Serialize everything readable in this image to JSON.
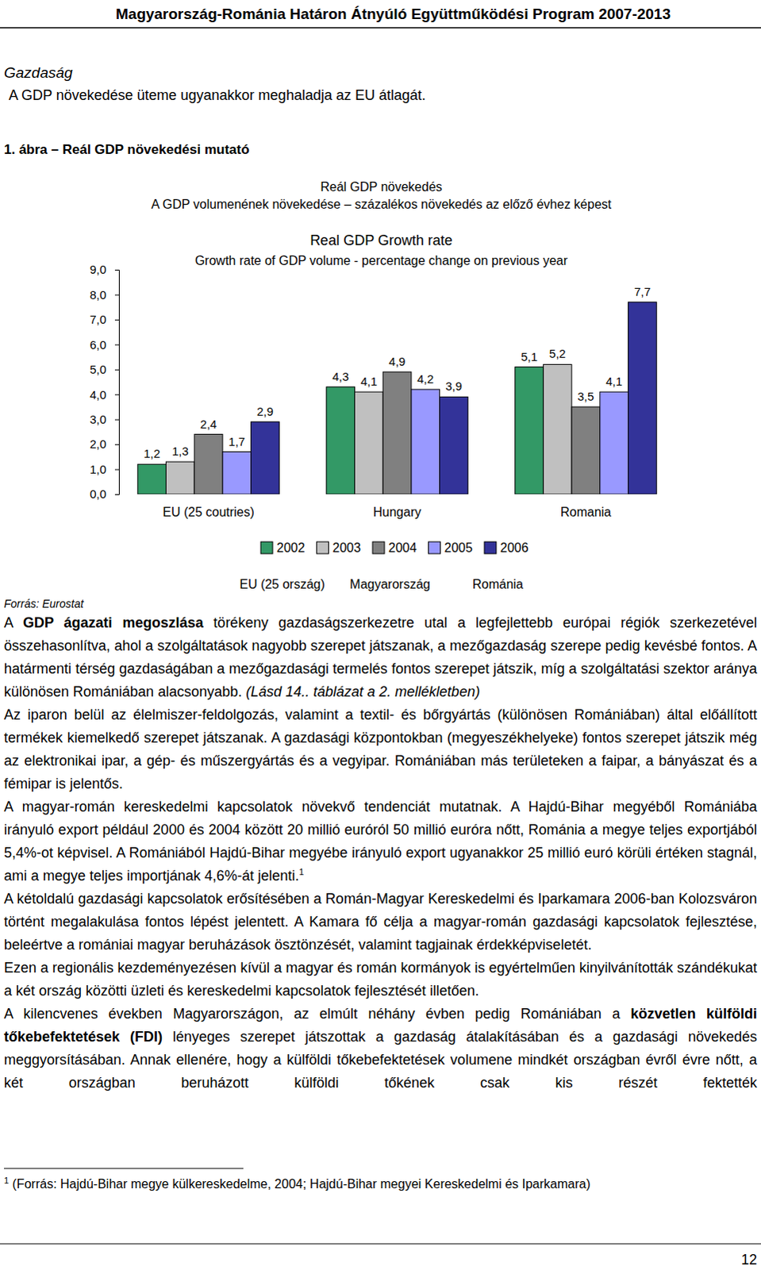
{
  "header": {
    "title": "Magyarország-Románia Határon Átnyúló Együttműködési Program 2007-2013"
  },
  "section": {
    "title": "Gazdaság",
    "lead": "A GDP növekedése üteme ugyanakkor meghaladja az EU átlagát."
  },
  "figure": {
    "caption": "1. ábra – Reál GDP növekedési mutató",
    "title": "Reál GDP növekedés",
    "subtitle": "A GDP volumenének növekedése – százalékos növekedés az előző évhez képest",
    "source": "Forrás: Eurostat"
  },
  "chart_data": {
    "type": "bar",
    "title": "Real GDP Growth rate",
    "subtitle": "Growth rate of GDP volume - percentage change on previous year",
    "categories": [
      "EU (25 coutries)",
      "Hungary",
      "Romania"
    ],
    "annotations": [
      "EU (25 ország)",
      "Magyarország",
      "Románia"
    ],
    "series": [
      {
        "name": "2002",
        "color": "#339966",
        "values": [
          1.2,
          4.3,
          5.1
        ],
        "value_labels": [
          "1,2",
          "4,3",
          "5,1"
        ]
      },
      {
        "name": "2003",
        "color": "#c0c0c0",
        "values": [
          1.3,
          4.1,
          5.2
        ],
        "value_labels": [
          "1,3",
          "4,1",
          "5,2"
        ]
      },
      {
        "name": "2004",
        "color": "#808080",
        "values": [
          2.4,
          4.9,
          3.5
        ],
        "value_labels": [
          "2,4",
          "4,9",
          "3,5"
        ]
      },
      {
        "name": "2005",
        "color": "#9999ff",
        "values": [
          1.7,
          4.2,
          4.1
        ],
        "value_labels": [
          "1,7",
          "4,2",
          "4,1"
        ]
      },
      {
        "name": "2006",
        "color": "#333399",
        "values": [
          2.9,
          3.9,
          7.7
        ],
        "value_labels": [
          "2,9",
          "3,9",
          "7,7"
        ]
      }
    ],
    "ylim": [
      0,
      9
    ],
    "yticks": [
      {
        "value": 0,
        "label": "0,0"
      },
      {
        "value": 1,
        "label": "1,0"
      },
      {
        "value": 2,
        "label": "2,0"
      },
      {
        "value": 3,
        "label": "3,0"
      },
      {
        "value": 4,
        "label": "4,0"
      },
      {
        "value": 5,
        "label": "5,0"
      },
      {
        "value": 6,
        "label": "6,0"
      },
      {
        "value": 7,
        "label": "7,0"
      },
      {
        "value": 8,
        "label": "8,0"
      },
      {
        "value": 9,
        "label": "9,0"
      }
    ],
    "grid": false,
    "legend": "bottom",
    "data_labels": true
  },
  "body": [
    [
      {
        "text": "A "
      },
      {
        "text": "GDP ágazati megoszlása",
        "bold": true
      },
      {
        "text": " törékeny gazdaságszerkezetre utal a legfejlettebb európai régiók szerkezetével összehasonlítva, ahol a szolgáltatások nagyobb szerepet játszanak, a mezőgazdaság szerepe pedig kevésbé fontos. A határmenti térség gazdaságában a mezőgazdasági termelés fontos szerepet játszik, míg a szolgáltatási szektor aránya különösen Romániában alacsonyabb. "
      },
      {
        "text": "(Lásd 14.. táblázat a 2. mellékletben)",
        "italic": true
      }
    ],
    [
      {
        "text": "Az iparon belül az élelmiszer-feldolgozás, valamint a textil- és bőrgyártás (különösen Romániában) által előállított termékek kiemelkedő szerepet játszanak. A gazdasági központokban (megyeszékhelyeke) fontos szerepet játszik még az elektronikai ipar, a gép- és műszergyártás és a vegyipar. Romániában más területeken a faipar, a bányászat és a fémipar is jelentős."
      }
    ],
    [
      {
        "text": "A magyar-román kereskedelmi kapcsolatok növekvő tendenciát mutatnak. A Hajdú-Bihar megyéből Romániába irányuló export például 2000 és 2004 között 20 millió euróról 50 millió euróra nőtt, Románia a megye teljes exportjából 5,4%-ot képvisel. A Romániából Hajdú-Bihar megyébe irányuló export ugyanakkor 25 millió euró körüli értéken stagnál, ami a megye teljes importjának 4,6%-át jelenti."
      },
      {
        "text": "1",
        "sup": true
      }
    ],
    [
      {
        "text": "A kétoldalú gazdasági kapcsolatok erősítésében a Román-Magyar Kereskedelmi és Iparkamara 2006-ban Kolozsváron történt megalakulása fontos lépést jelentett. A Kamara fő célja a magyar-román gazdasági kapcsolatok fejlesztése, beleértve a romániai magyar beruházások ösztönzését, valamint tagjainak érdekképviseletét."
      }
    ],
    [
      {
        "text": "Ezen a regionális kezdeményezésen kívül a magyar és román kormányok is egyértelműen kinyilvánították szándékukat a két ország közötti üzleti és kereskedelmi kapcsolatok fejlesztését illetően."
      }
    ],
    [
      {
        "text": "A kilencvenes években Magyarországon, az elmúlt néhány évben pedig Romániában a "
      },
      {
        "text": "közvetlen külföldi tőkebefektetések (FDI)",
        "bold": true
      },
      {
        "text": " lényeges szerepet játszottak a gazdaság átalakításában és a gazdasági növekedés meggyorsításában. Annak ellenére, hogy a külföldi tőkebefektetések volumene mindkét országban évről évre nőtt, a két országban beruházott külföldi tőkének csak kis részét fektették"
      }
    ]
  ],
  "footnote": {
    "mark": "1",
    "text": "(Forrás: Hajdú-Bihar megye külkereskedelme, 2004; Hajdú-Bihar megyei Kereskedelmi és Iparkamara)"
  },
  "page_number": "12"
}
